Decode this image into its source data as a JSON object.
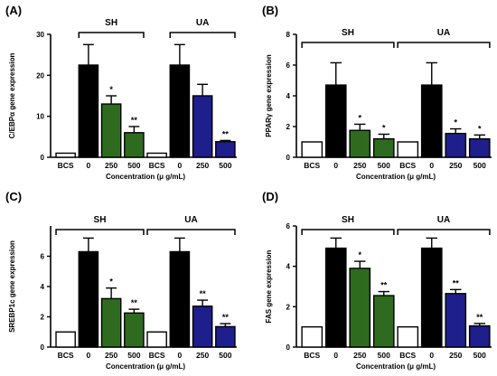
{
  "chart_data": [
    {
      "panel": "(A)",
      "type": "bar",
      "categories": [
        "BCS",
        "0",
        "250",
        "500",
        "BCS",
        "0",
        "250",
        "500"
      ],
      "groups": [
        {
          "label": "SH",
          "from": 1,
          "to": 3
        },
        {
          "label": "UA",
          "from": 5,
          "to": 7
        }
      ],
      "values": [
        1,
        22.5,
        13,
        6,
        1,
        22.5,
        15,
        3.8
      ],
      "errors": [
        0,
        5,
        2,
        1.5,
        0,
        5,
        2.8,
        0.3
      ],
      "colors": [
        "#ffffff",
        "#000000",
        "#2e6b1f",
        "#2e6b1f",
        "#ffffff",
        "#000000",
        "#1e1e8c",
        "#1e1e8c"
      ],
      "significance": [
        "",
        "",
        "*",
        "**",
        "",
        "",
        "",
        "**"
      ],
      "ylabel": "C/EBPα gene expression",
      "xlabel": "Concentration (μ g/mL)",
      "ylim": [
        0,
        30
      ],
      "yticks": [
        0,
        10,
        20,
        30
      ]
    },
    {
      "panel": "(B)",
      "type": "bar",
      "categories": [
        "BCS",
        "0",
        "250",
        "500",
        "BCS",
        "0",
        "250",
        "500"
      ],
      "groups": [
        {
          "label": "SH",
          "from": 0,
          "to": 3
        },
        {
          "label": "UA",
          "from": 4,
          "to": 7
        }
      ],
      "values": [
        1,
        4.7,
        1.75,
        1.2,
        1,
        4.7,
        1.55,
        1.2
      ],
      "errors": [
        0,
        1.45,
        0.4,
        0.3,
        0,
        1.45,
        0.3,
        0.25
      ],
      "colors": [
        "#ffffff",
        "#000000",
        "#2e6b1f",
        "#2e6b1f",
        "#ffffff",
        "#000000",
        "#1e1e8c",
        "#1e1e8c"
      ],
      "significance": [
        "",
        "",
        "*",
        "*",
        "",
        "",
        "*",
        "*"
      ],
      "ylabel": "PPARγ gene expression",
      "xlabel": "Concentration (μ g/mL)",
      "ylim": [
        0,
        8
      ],
      "yticks": [
        0,
        2,
        4,
        6,
        8
      ]
    },
    {
      "panel": "(C)",
      "type": "bar",
      "categories": [
        "BCS",
        "0",
        "250",
        "500",
        "BCS",
        "0",
        "250",
        "500"
      ],
      "groups": [
        {
          "label": "SH",
          "from": 0,
          "to": 3
        },
        {
          "label": "UA",
          "from": 4,
          "to": 7
        }
      ],
      "values": [
        1,
        6.3,
        3.2,
        2.25,
        1,
        6.3,
        2.7,
        1.35
      ],
      "errors": [
        0,
        0.9,
        0.7,
        0.25,
        0,
        0.9,
        0.4,
        0.2
      ],
      "colors": [
        "#ffffff",
        "#000000",
        "#2e6b1f",
        "#2e6b1f",
        "#ffffff",
        "#000000",
        "#1e1e8c",
        "#1e1e8c"
      ],
      "significance": [
        "",
        "",
        "*",
        "**",
        "",
        "",
        "**",
        "**"
      ],
      "ylabel": "SREBP1c gene expression",
      "xlabel": "Concentration (μ g/mL)",
      "ylim": [
        0,
        8
      ],
      "yticks": [
        0,
        2,
        4,
        6
      ]
    },
    {
      "panel": "(D)",
      "type": "bar",
      "categories": [
        "BCS",
        "0",
        "250",
        "500",
        "BCS",
        "0",
        "250",
        "500"
      ],
      "groups": [
        {
          "label": "SH",
          "from": 0,
          "to": 3
        },
        {
          "label": "UA",
          "from": 4,
          "to": 7
        }
      ],
      "values": [
        1,
        4.9,
        3.9,
        2.55,
        1,
        4.9,
        2.65,
        1.05
      ],
      "errors": [
        0,
        0.5,
        0.35,
        0.2,
        0,
        0.5,
        0.2,
        0.12
      ],
      "colors": [
        "#ffffff",
        "#000000",
        "#2e6b1f",
        "#2e6b1f",
        "#ffffff",
        "#000000",
        "#1e1e8c",
        "#1e1e8c"
      ],
      "significance": [
        "",
        "",
        "*",
        "**",
        "",
        "",
        "**",
        "**"
      ],
      "ylabel": "FAS gene expression",
      "xlabel": "Concentration (μ g/mL)",
      "ylim": [
        0,
        6
      ],
      "yticks": [
        0,
        2,
        4,
        6
      ]
    }
  ]
}
